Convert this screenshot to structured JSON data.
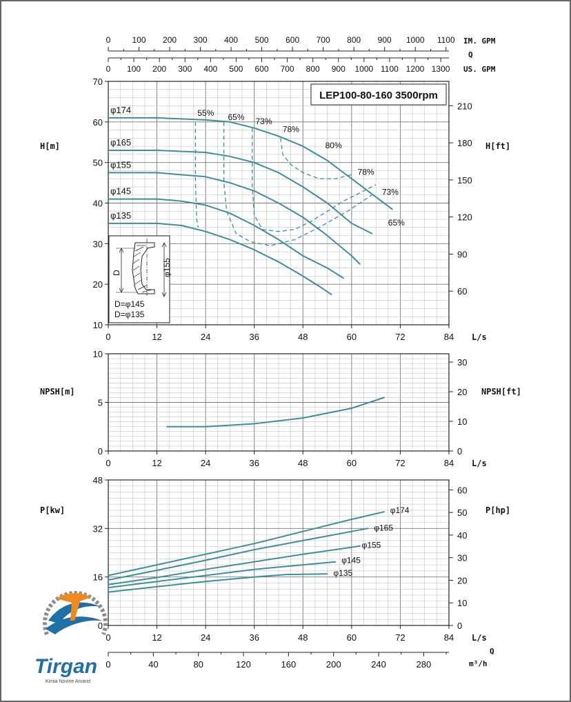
{
  "colors": {
    "curve": "#3a8ea0",
    "grid": "#b7b7b7",
    "axis": "#222222",
    "logo_blue": "#1f6fa8",
    "logo_orange": "#f08a1c",
    "logo_gray": "#8c8c8c"
  },
  "logo": {
    "brand": "Tirgan",
    "tagline": "Kimia Novine Arvand",
    "icon": "tirgan-logo-icon"
  },
  "top_scales": {
    "im_gpm": {
      "label": "IM. GPM",
      "ticks": [
        0,
        100,
        200,
        300,
        400,
        500,
        600,
        700,
        800,
        900,
        1000,
        1100
      ]
    },
    "q_label": "Q",
    "us_gpm": {
      "label": "US. GPM",
      "ticks": [
        0,
        100,
        200,
        300,
        400,
        500,
        600,
        700,
        800,
        900,
        1000,
        1100,
        1200,
        1300
      ]
    }
  },
  "bottom_scale": {
    "label": "m³/h",
    "q_label": "Q",
    "ticks": [
      0,
      40,
      80,
      120,
      160,
      200,
      240,
      280
    ]
  },
  "impeller_inset": {
    "d_label": "D",
    "d155_label": "φ155",
    "lines": [
      "D=φ145",
      "D=φ135"
    ]
  },
  "chart_data": [
    {
      "type": "line",
      "id": "head",
      "title": "LEP100-80-160 3500rpm",
      "xlabel": "L/s",
      "ylabel": "H[m]",
      "y2label": "H[ft]",
      "xlim": [
        0,
        84
      ],
      "ylim": [
        10,
        70
      ],
      "y2lim": [
        32.8,
        229.7
      ],
      "x_ticks": [
        0,
        12,
        24,
        36,
        48,
        60,
        72,
        84
      ],
      "y_ticks": [
        10,
        20,
        30,
        40,
        50,
        60,
        70
      ],
      "y2_ticks": [
        60,
        90,
        120,
        150,
        180,
        210
      ],
      "grid": true,
      "series": [
        {
          "name": "φ174",
          "x": [
            0,
            12,
            24,
            30,
            36,
            42,
            48,
            54,
            60,
            66,
            70
          ],
          "y": [
            61,
            61,
            60.5,
            60,
            58.5,
            56.5,
            54,
            50.5,
            46,
            41.5,
            38.5
          ]
        },
        {
          "name": "φ165",
          "x": [
            0,
            12,
            24,
            30,
            36,
            42,
            48,
            54,
            60,
            65
          ],
          "y": [
            53,
            53,
            52.5,
            51.5,
            50,
            47.5,
            44,
            40,
            35,
            32.5
          ]
        },
        {
          "name": "φ155",
          "x": [
            0,
            12,
            24,
            30,
            36,
            42,
            48,
            54,
            60,
            62
          ],
          "y": [
            47.5,
            47.5,
            46.5,
            45,
            43,
            40,
            36.5,
            32,
            27,
            25
          ]
        },
        {
          "name": "φ145",
          "x": [
            0,
            12,
            18,
            24,
            30,
            36,
            42,
            48,
            54,
            58
          ],
          "y": [
            41,
            41,
            40.5,
            39.5,
            37.5,
            34.5,
            31,
            27,
            24,
            21.5
          ]
        },
        {
          "name": "φ135",
          "x": [
            0,
            12,
            18,
            24,
            30,
            36,
            42,
            48,
            52,
            55
          ],
          "y": [
            35,
            35,
            34.5,
            33,
            31,
            28.5,
            25.5,
            22,
            19.5,
            17.5
          ]
        }
      ],
      "efficiency_lines": [
        {
          "name": "55%",
          "x": [
            21.5,
            21.5,
            21.8,
            22.2
          ],
          "y": [
            60,
            45,
            36,
            34
          ]
        },
        {
          "name": "65%",
          "x": [
            28.5,
            28.5,
            29.2,
            31.5,
            35,
            40,
            46,
            52,
            59,
            65
          ],
          "y": [
            60,
            45,
            38,
            32.5,
            30.5,
            29.5,
            31,
            34,
            38,
            42
          ]
        },
        {
          "name": "73%",
          "x": [
            35.5,
            35.5,
            36,
            38,
            42,
            46,
            50,
            54,
            58,
            62,
            66
          ],
          "y": [
            58.5,
            44,
            37,
            33.5,
            33,
            33.5,
            35.5,
            38,
            40.5,
            42.5,
            44.5
          ]
        },
        {
          "name": "78%",
          "x": [
            42.5,
            43,
            45,
            48,
            52,
            56,
            60
          ],
          "y": [
            56,
            52,
            49.5,
            47.5,
            46,
            46,
            47
          ]
        }
      ],
      "efficiency_labels": [
        {
          "text": "55%",
          "x": 22,
          "y": 61.5
        },
        {
          "text": "65%",
          "x": 29.5,
          "y": 60.5
        },
        {
          "text": "73%",
          "x": 36.3,
          "y": 59.5
        },
        {
          "text": "78%",
          "x": 43,
          "y": 57.5
        },
        {
          "text": "80%",
          "x": 53.5,
          "y": 53.5
        },
        {
          "text": "78%",
          "x": 61.5,
          "y": 47
        },
        {
          "text": "73%",
          "x": 67.5,
          "y": 42
        },
        {
          "text": "65%",
          "x": 69,
          "y": 34.5
        }
      ]
    },
    {
      "type": "line",
      "id": "npsh",
      "xlabel": "L/s",
      "ylabel": "NPSH[m]",
      "y2label": "NPSH[ft]",
      "xlim": [
        0,
        84
      ],
      "ylim": [
        0,
        10
      ],
      "y2lim": [
        0,
        32.8
      ],
      "x_ticks": [
        0,
        12,
        24,
        36,
        48,
        60,
        72,
        84
      ],
      "y_ticks": [
        0,
        5,
        10
      ],
      "y2_ticks": [
        0,
        10,
        20,
        30
      ],
      "grid": true,
      "series": [
        {
          "name": "NPSH",
          "x": [
            14.5,
            24,
            36,
            48,
            60,
            68
          ],
          "y": [
            2.5,
            2.5,
            2.8,
            3.4,
            4.4,
            5.5
          ]
        }
      ]
    },
    {
      "type": "line",
      "id": "power",
      "xlabel": "L/s",
      "ylabel": "P[kw]",
      "y2label": "P[hp]",
      "xlim": [
        0,
        84
      ],
      "ylim": [
        0,
        48
      ],
      "y2lim": [
        0,
        64.4
      ],
      "x_ticks": [
        0,
        12,
        24,
        36,
        48,
        60,
        72,
        84
      ],
      "y_ticks": [
        0,
        16,
        32,
        48
      ],
      "y2_ticks": [
        0,
        10,
        20,
        30,
        40,
        50,
        60
      ],
      "grid": true,
      "series": [
        {
          "name": "φ174",
          "x": [
            0,
            12,
            24,
            36,
            48,
            60,
            68
          ],
          "y": [
            16.5,
            20,
            23.5,
            27,
            31,
            35,
            37.5
          ]
        },
        {
          "name": "φ165",
          "x": [
            0,
            12,
            24,
            36,
            48,
            60,
            64
          ],
          "y": [
            15,
            18.2,
            21.5,
            25,
            28,
            31,
            32
          ]
        },
        {
          "name": "φ155",
          "x": [
            0,
            12,
            24,
            36,
            48,
            60,
            62
          ],
          "y": [
            13.5,
            15.8,
            18.5,
            21,
            23.5,
            25.8,
            26.2
          ]
        },
        {
          "name": "φ145",
          "x": [
            0,
            12,
            24,
            36,
            48,
            56
          ],
          "y": [
            12.5,
            14.5,
            16.5,
            18.5,
            20,
            21
          ]
        },
        {
          "name": "φ135",
          "x": [
            0,
            12,
            24,
            36,
            44,
            54
          ],
          "y": [
            11,
            12.8,
            14.5,
            16,
            16.8,
            17
          ]
        }
      ],
      "series_labels": [
        {
          "text": "φ174",
          "x": 69.5,
          "y": 38
        },
        {
          "text": "φ165",
          "x": 65.5,
          "y": 32.2
        },
        {
          "text": "φ155",
          "x": 62.5,
          "y": 26.5
        },
        {
          "text": "φ145",
          "x": 57.5,
          "y": 21.5
        },
        {
          "text": "φ135",
          "x": 55.5,
          "y": 17.3
        }
      ]
    }
  ]
}
